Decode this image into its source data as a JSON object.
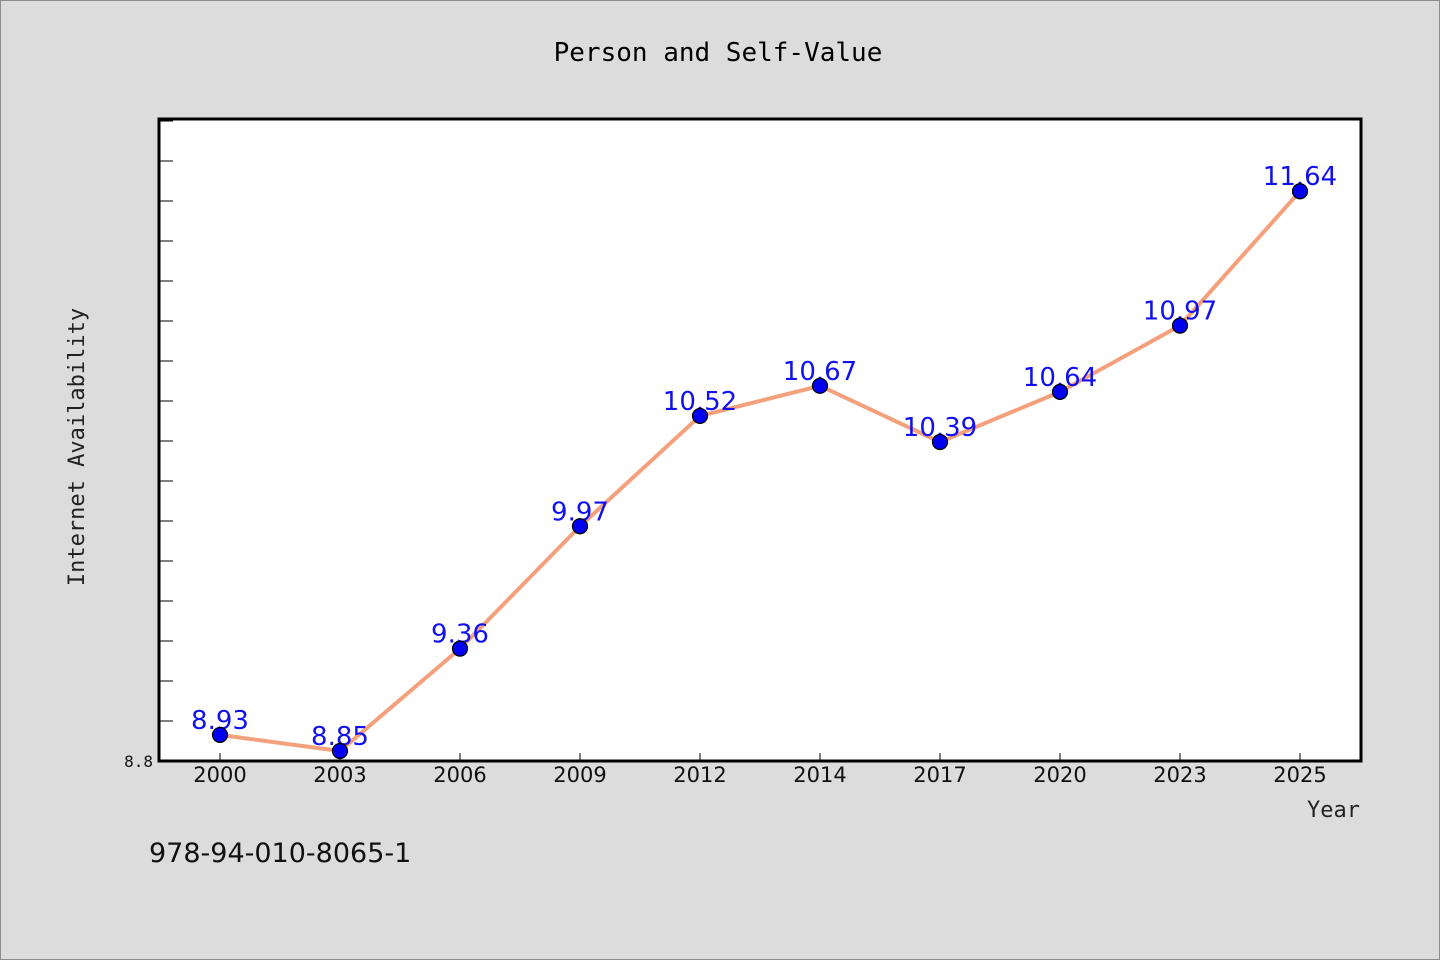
{
  "chart_data": {
    "type": "line",
    "title": "Person and Self-Value",
    "xlabel": "Year",
    "ylabel": "Internet Availability",
    "categories": [
      "2000",
      "2003",
      "2006",
      "2009",
      "2012",
      "2014",
      "2017",
      "2020",
      "2023",
      "2025"
    ],
    "series": [
      {
        "values": [
          8.93,
          8.85,
          9.36,
          9.97,
          10.52,
          10.67,
          10.39,
          10.64,
          10.97,
          11.64
        ]
      }
    ],
    "data_labels": [
      "8.93",
      "8.85",
      "9.36",
      "9.97",
      "10.52",
      "10.67",
      "10.39",
      "10.64",
      "10.97",
      "11.64"
    ],
    "y_tick_labels": [
      "8.8"
    ],
    "ylim": [
      8.8,
      12.0
    ],
    "grid": false,
    "legend": "none",
    "colors": {
      "line": "#f4a07c",
      "marker_fill": "#0000ee",
      "marker_edge": "#000000",
      "data_label": "#1010f0",
      "plot_background": "#ffffff",
      "page_background": "#dcdcdc"
    }
  },
  "footer": {
    "isbn": "978-94-010-8065-1"
  }
}
